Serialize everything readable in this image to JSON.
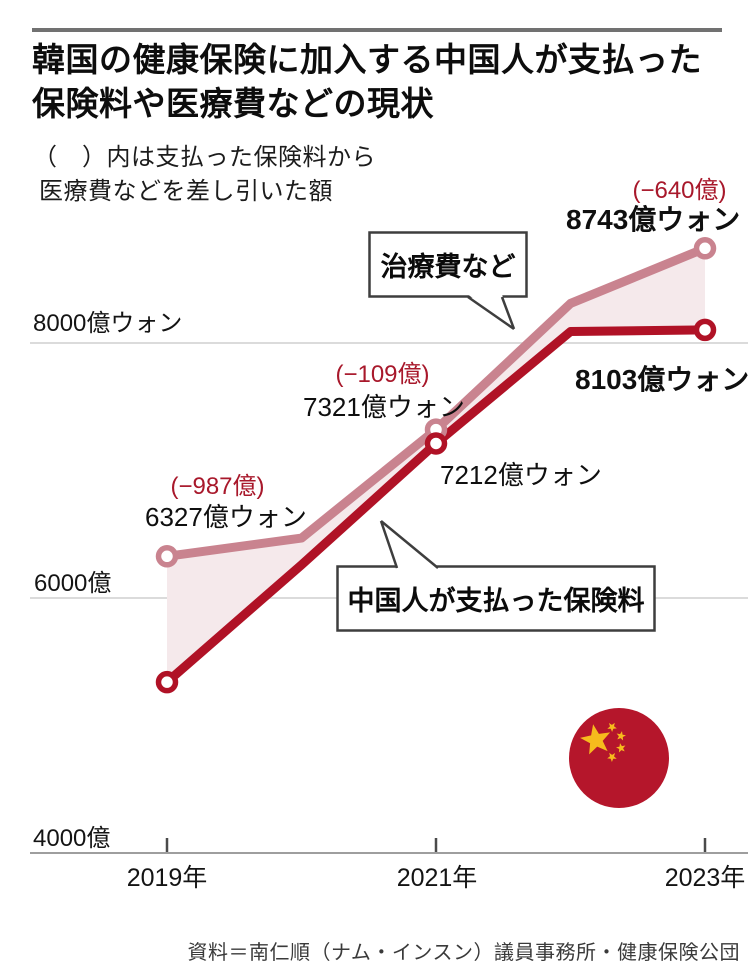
{
  "header": {
    "title_line1": "韓国の健康保険に加入する中国人が支払った",
    "title_line2": "保険料や医療費などの現状",
    "subtitle_line1": "（　）内は支払った保険料から",
    "subtitle_line2": "医療費などを差し引いた額"
  },
  "callouts": {
    "treatment": "治療費など",
    "premium": "中国人が支払った保険料"
  },
  "source": "資料＝南仁順（ナム・インスン）議員事務所・健康保険公団",
  "colors": {
    "treatment_line": "#c9838f",
    "premium_line": "#b01226",
    "gap_fill": "#f5e9eb",
    "diff_text": "#a8182b",
    "gridline": "#cfcfcf",
    "axis": "#9e9e9e",
    "tick": "#4a4a4a",
    "callout_border": "#3e3e3e",
    "flag_red": "#b5162b",
    "flag_star": "#f6bb1d"
  },
  "chart_data": {
    "type": "line",
    "x": [
      2019,
      2020,
      2021,
      2022,
      2023
    ],
    "x_tick_years": [
      2019,
      2021,
      2023
    ],
    "x_tick_labels": [
      "2019年",
      "2021年",
      "2023年"
    ],
    "ylim": [
      4000,
      9200
    ],
    "unit": "億ウォン",
    "y_gridlines": [
      {
        "value": 8000,
        "label": "8000億ウォン"
      },
      {
        "value": 6000,
        "label": "6000億"
      }
    ],
    "y_axis_bottom": {
      "value": 4000,
      "label": "4000億"
    },
    "marker_years": [
      2019,
      2021,
      2023
    ],
    "series": [
      {
        "name": "治療費など",
        "values": [
          6327,
          6470,
          7321,
          8310,
          8743
        ],
        "note": "2020・2022 estimated from line bends; 2019/2021/2023 labeled"
      },
      {
        "name": "中国人が支払った保険料",
        "values": [
          5340,
          6260,
          7212,
          8090,
          8103
        ],
        "note": "2021/2023 labeled; 2019 derived from −987億 difference; 2020・2022 estimated"
      }
    ],
    "annotations": {
      "p2019": {
        "diff": "(−987億)",
        "value_treatment": "6327億ウォン"
      },
      "p2021": {
        "diff": "(−109億)",
        "value_treatment": "7321億ウォン",
        "value_premium": "7212億ウォン"
      },
      "p2023": {
        "diff": "(−640億)",
        "value_treatment": "8743億ウォン",
        "value_premium": "8103億ウォン"
      }
    },
    "legend_position": "inline-callouts",
    "grid": true
  }
}
